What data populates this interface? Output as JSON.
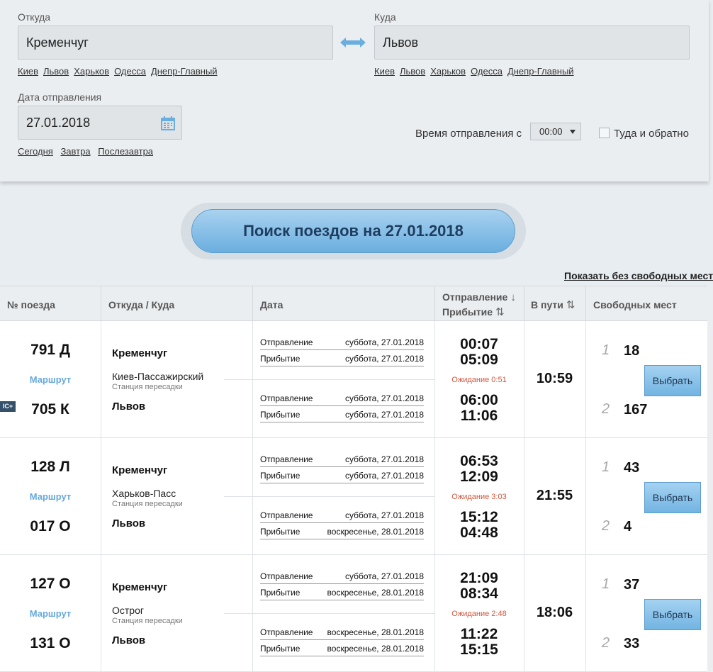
{
  "form": {
    "from_label": "Откуда",
    "from_value": "Кременчуг",
    "to_label": "Куда",
    "to_value": "Львов",
    "quick_from": [
      "Киев",
      "Львов",
      "Харьков",
      "Одесса",
      "Днепр-Главный"
    ],
    "quick_to": [
      "Киев",
      "Львов",
      "Харьков",
      "Одесса",
      "Днепр-Главный"
    ],
    "date_label": "Дата отправления",
    "date_value": "27.01.2018",
    "quick_dates": [
      "Сегодня",
      "Завтра",
      "Послезавтра"
    ],
    "time_label": "Время отправления с",
    "time_value": "00:00",
    "roundtrip_label": "Туда и обратно"
  },
  "search_button": "Поиск поездов на 27.01.2018",
  "show_all_link": "Показать без свободных мест",
  "table": {
    "headers": {
      "train": "№ поезда",
      "route": "Откуда / Куда",
      "date": "Дата",
      "dep": "Отправление",
      "arr": "Прибытие",
      "travel": "В пути",
      "seats": "Свободных мест"
    },
    "route_label": "Маршрут",
    "transfer_label": "Станция пересадки",
    "dep_label": "Отправление",
    "arr_label": "Прибытие",
    "select_label": "Выбрать",
    "ic_badge": "IC+",
    "rows": [
      {
        "train1": "791 Д",
        "train2": "705 К",
        "from": "Кременчуг",
        "transfer": "Киев-Пассажирский",
        "to": "Львов",
        "d1": "суббота, 27.01.2018",
        "a1": "суббота, 27.01.2018",
        "d2": "суббота, 27.01.2018",
        "a2": "суббота, 27.01.2018",
        "t_d1": "00:07",
        "t_a1": "05:09",
        "wait": "Ожидание 0:51",
        "t_d2": "06:00",
        "t_a2": "11:06",
        "travel": "10:59",
        "c1": "1",
        "s1": "18",
        "c2": "2",
        "s2": "167"
      },
      {
        "train1": "128 Л",
        "train2": "017 О",
        "from": "Кременчуг",
        "transfer": "Харьков-Пасс",
        "to": "Львов",
        "d1": "суббота, 27.01.2018",
        "a1": "суббота, 27.01.2018",
        "d2": "суббота, 27.01.2018",
        "a2": "воскресенье, 28.01.2018",
        "t_d1": "06:53",
        "t_a1": "12:09",
        "wait": "Ожидание 3:03",
        "t_d2": "15:12",
        "t_a2": "04:48",
        "travel": "21:55",
        "c1": "1",
        "s1": "43",
        "c2": "2",
        "s2": "4"
      },
      {
        "train1": "127 О",
        "train2": "131 О",
        "from": "Кременчуг",
        "transfer": "Острог",
        "to": "Львов",
        "d1": "суббота, 27.01.2018",
        "a1": "воскресенье, 28.01.2018",
        "d2": "воскресенье, 28.01.2018",
        "a2": "воскресенье, 28.01.2018",
        "t_d1": "21:09",
        "t_a1": "08:34",
        "wait": "Ожидание 2:48",
        "t_d2": "11:22",
        "t_a2": "15:15",
        "travel": "18:06",
        "c1": "1",
        "s1": "37",
        "c2": "2",
        "s2": "33"
      }
    ]
  },
  "icons": {
    "swap": "swap-arrows-icon",
    "calendar": "calendar-icon",
    "sort": "sort-icon"
  },
  "colors": {
    "accent": "#6aaedf",
    "link": "#66a9dc",
    "wait": "#d1573e"
  }
}
